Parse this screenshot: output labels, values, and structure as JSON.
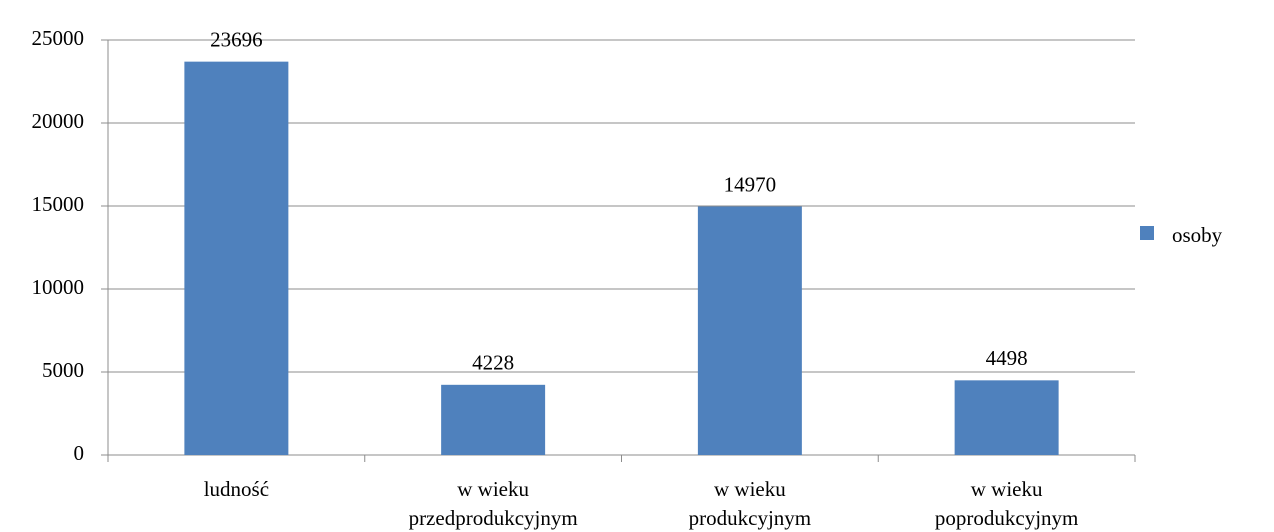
{
  "chart_data": {
    "type": "bar",
    "categories": [
      "ludność",
      "w wieku\nprzedprodukcyjnym",
      "w wieku\nprodukcyjnym",
      "w wieku\npoprodukcyjnym"
    ],
    "series": [
      {
        "name": "osoby",
        "color": "#4f81bd",
        "values": [
          23696,
          4228,
          14970,
          4498
        ]
      }
    ],
    "ylim": [
      0,
      25000
    ],
    "yticks": [
      0,
      5000,
      10000,
      15000,
      20000,
      25000
    ],
    "grid": true,
    "legend": "right",
    "data_labels": true
  }
}
